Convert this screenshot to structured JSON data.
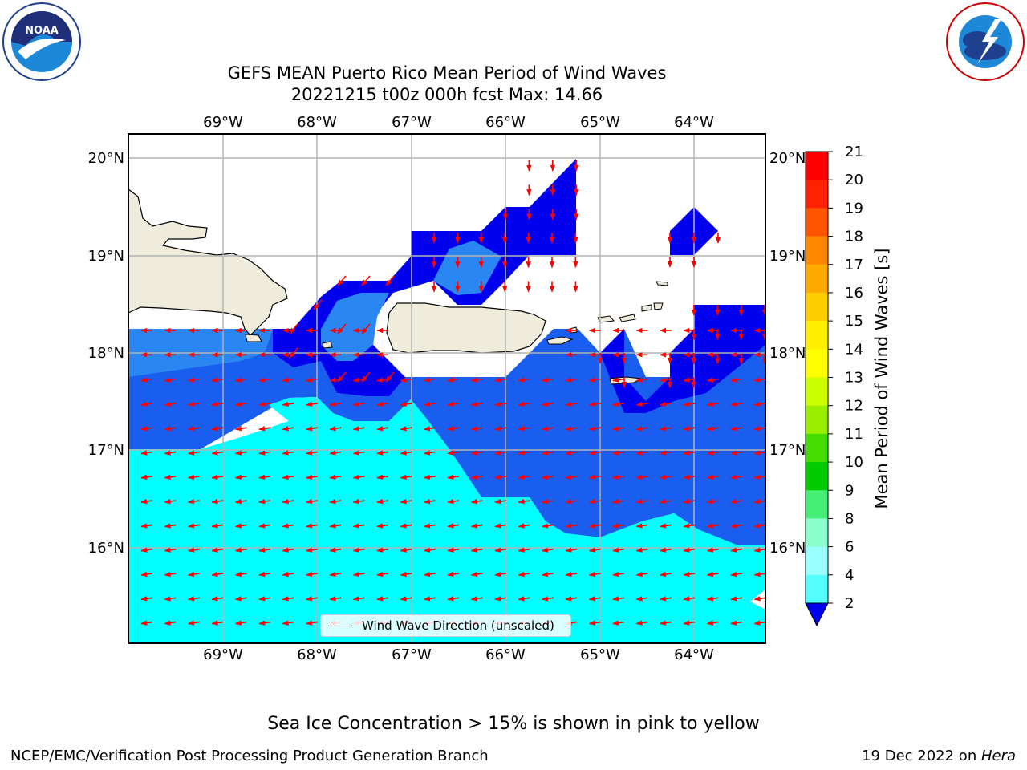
{
  "header": {
    "title_line1": "GEFS MEAN Puerto Rico Mean Period of Wind Waves",
    "title_line2": "20221215 t00z 000h fcst   Max: 14.66"
  },
  "logos": {
    "left": "noaa-logo",
    "right": "nws-logo"
  },
  "map": {
    "lon_labels": [
      "69°W",
      "68°W",
      "67°W",
      "66°W",
      "65°W",
      "64°W"
    ],
    "lat_labels": [
      "20°N",
      "19°N",
      "18°N",
      "17°N",
      "16°N"
    ],
    "colors": {
      "land": "#efecdc",
      "ocean_low": "#00ffff",
      "level_4_6": "#0099ff",
      "level_2_4": "#1a5ef0",
      "deep": "#0000ee",
      "arrow": "#ff0000"
    }
  },
  "legend": {
    "label": "Wind Wave Direction (unscaled)"
  },
  "colorbar": {
    "label": "Mean Period of Wind Waves [s]",
    "ticks": [
      "21",
      "20",
      "19",
      "18",
      "17",
      "16",
      "15",
      "14",
      "13",
      "12",
      "11",
      "10",
      "9",
      "8",
      "6",
      "4",
      "2"
    ],
    "colors": [
      "#ff0000",
      "#ff2200",
      "#ff5500",
      "#ff8800",
      "#ffaa00",
      "#ffcc00",
      "#ffee00",
      "#ffff00",
      "#ccff00",
      "#99ee00",
      "#44dd00",
      "#00cc00",
      "#44ee77",
      "#88ffcc",
      "#99ffff",
      "#55ffff",
      "#00eeff",
      "#1a74f0"
    ]
  },
  "footer": {
    "note": "Sea Ice Concentration > 15% is shown in pink to yellow",
    "left": "NCEP/EMC/Verification Post Processing Product Generation Branch",
    "right_date": "19 Dec 2022 on ",
    "right_host": "Hera"
  }
}
